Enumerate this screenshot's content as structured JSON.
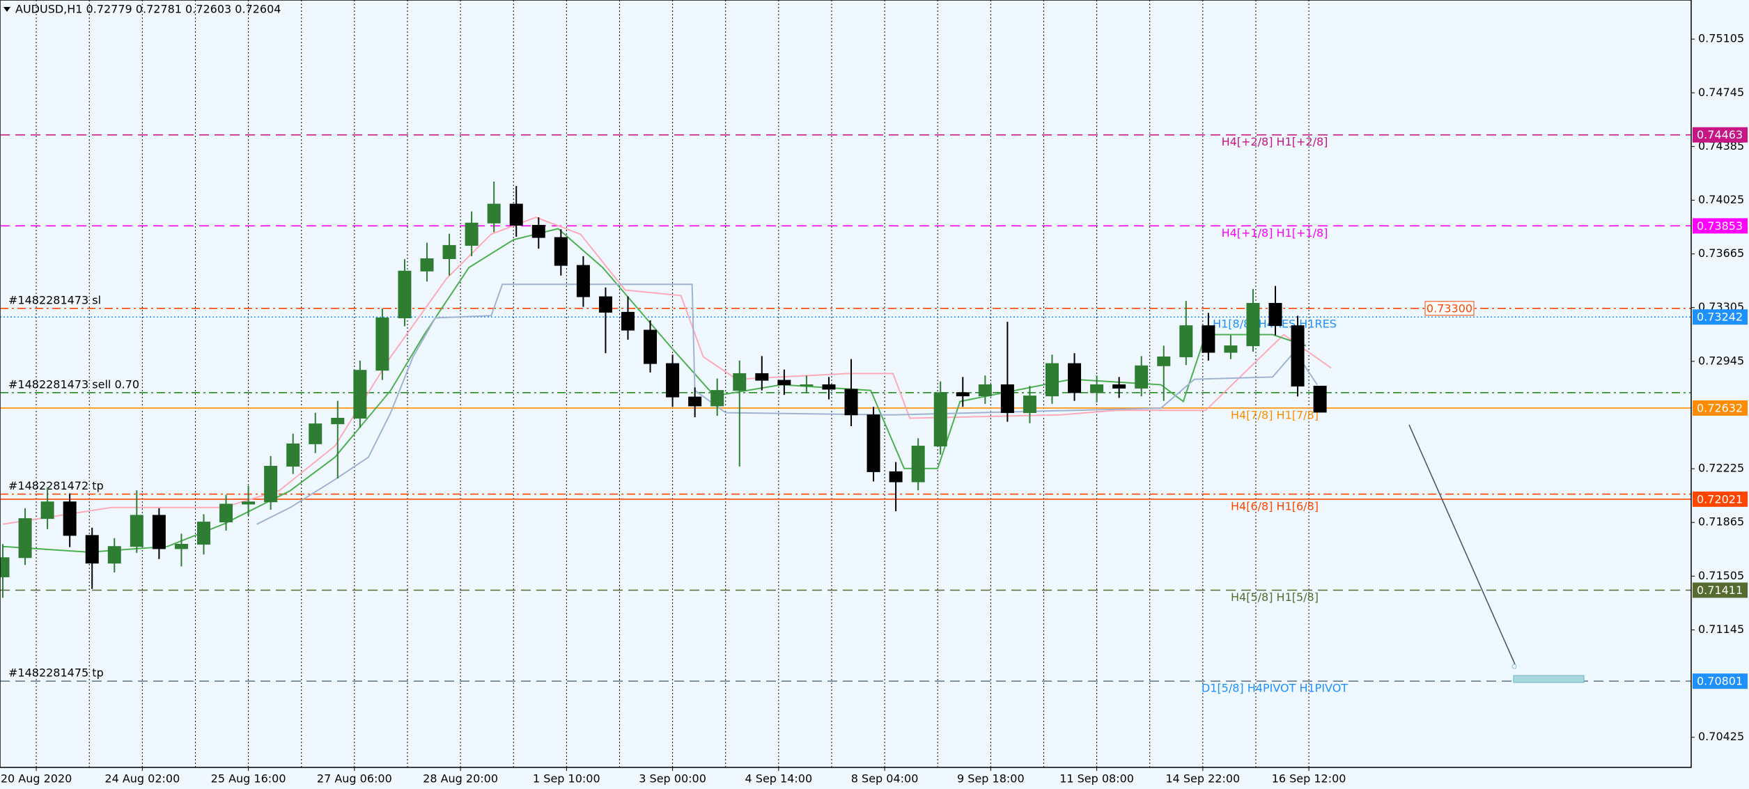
{
  "chart_data": {
    "type": "candlestick",
    "title": "AUDUSD,H1  0.72779 0.72781 0.72603 0.72604",
    "bull_color": "#2e7d32",
    "bear_color": "#000000",
    "background": "#f0f8ff",
    "xlim": [
      -13,
      593
    ],
    "ylim": [
      0.70223,
      0.75367
    ],
    "xticks": [
      {
        "value": 0,
        "label": "20 Aug 2020"
      },
      {
        "value": 38,
        "label": "24 Aug 02:00"
      },
      {
        "value": 76,
        "label": "25 Aug 16:00"
      },
      {
        "value": 114,
        "label": "27 Aug 06:00"
      },
      {
        "value": 152,
        "label": "28 Aug 20:00"
      },
      {
        "value": 190,
        "label": "1 Sep 10:00"
      },
      {
        "value": 228,
        "label": "3 Sep 00:00"
      },
      {
        "value": 266,
        "label": "4 Sep 14:00"
      },
      {
        "value": 304,
        "label": "8 Sep 04:00"
      },
      {
        "value": 342,
        "label": "9 Sep 18:00"
      },
      {
        "value": 380,
        "label": "11 Sep 08:00"
      },
      {
        "value": 418,
        "label": "14 Sep 22:00"
      },
      {
        "value": 456,
        "label": "16 Sep 12:00"
      }
    ],
    "yticks": [
      0.75105,
      0.74745,
      0.74385,
      0.74025,
      0.73665,
      0.73305,
      0.72945,
      0.72225,
      0.71865,
      0.71505,
      0.71145,
      0.70425
    ],
    "x": [
      -12,
      -4,
      4,
      12,
      20,
      28,
      36,
      44,
      52,
      60,
      68,
      76,
      84,
      92,
      100,
      108,
      116,
      124,
      132,
      140,
      148,
      156,
      164,
      172,
      180,
      188,
      196,
      204,
      212,
      220,
      228,
      236,
      244,
      252,
      260,
      268,
      276,
      284,
      292,
      300,
      308,
      316,
      324,
      332,
      340,
      348,
      356,
      364,
      372,
      380,
      388,
      396,
      404,
      412,
      420,
      428,
      436,
      444,
      452,
      460
    ],
    "open": [
      0.715,
      0.71629,
      0.71891,
      0.72003,
      0.71778,
      0.71592,
      0.71704,
      0.71913,
      0.71689,
      0.71719,
      0.71868,
      0.71988,
      0.72003,
      0.72242,
      0.72392,
      0.72526,
      0.72564,
      0.72885,
      0.73236,
      0.7355,
      0.73633,
      0.73722,
      0.73872,
      0.73999,
      0.73857,
      0.73775,
      0.73588,
      0.73378,
      0.73274,
      0.73154,
      0.7293,
      0.72706,
      0.72646,
      0.7275,
      0.72863,
      0.72818,
      0.72788,
      0.72788,
      0.72758,
      0.72586,
      0.72205,
      0.72137,
      0.72377,
      0.72735,
      0.72713,
      0.72788,
      0.72601,
      0.72713,
      0.7293,
      0.72735,
      0.72788,
      0.72765,
      0.72915,
      0.72975,
      0.73184,
      0.73005,
      0.73049,
      0.73334,
      0.73184,
      0.72779
    ],
    "high": [
      0.7172,
      0.7196,
      0.721,
      0.7206,
      0.7183,
      0.7176,
      0.7208,
      0.7196,
      0.7179,
      0.7192,
      0.7205,
      0.7211,
      0.7231,
      0.7246,
      0.726,
      0.7268,
      0.7295,
      0.733,
      0.7363,
      0.7374,
      0.738,
      0.7395,
      0.7415,
      0.7412,
      0.7391,
      0.7383,
      0.7365,
      0.7344,
      0.7338,
      0.7322,
      0.7299,
      0.7277,
      0.7283,
      0.7295,
      0.7298,
      0.7289,
      0.7285,
      0.7284,
      0.7296,
      0.7264,
      0.7227,
      0.7243,
      0.7281,
      0.7284,
      0.7285,
      0.7321,
      0.7278,
      0.7299,
      0.73,
      0.7285,
      0.7284,
      0.7298,
      0.7305,
      0.7335,
      0.7327,
      0.7312,
      0.7343,
      0.7345,
      0.7325,
      0.72781
    ],
    "low": [
      0.7136,
      0.7158,
      0.7182,
      0.717,
      0.7142,
      0.7153,
      0.7166,
      0.7162,
      0.7157,
      0.7165,
      0.7181,
      0.7191,
      0.7195,
      0.7219,
      0.7233,
      0.7216,
      0.725,
      0.7282,
      0.7318,
      0.7348,
      0.7352,
      0.7365,
      0.7381,
      0.7378,
      0.737,
      0.7352,
      0.7331,
      0.73,
      0.7309,
      0.7287,
      0.7264,
      0.7257,
      0.7258,
      0.7224,
      0.7275,
      0.7272,
      0.7273,
      0.7269,
      0.7251,
      0.7214,
      0.7194,
      0.7208,
      0.7232,
      0.7264,
      0.7266,
      0.7254,
      0.7253,
      0.7266,
      0.7268,
      0.7267,
      0.727,
      0.7271,
      0.7268,
      0.7292,
      0.7295,
      0.7296,
      0.7301,
      0.7312,
      0.7271,
      0.72603
    ],
    "close": [
      0.71629,
      0.71891,
      0.72003,
      0.71778,
      0.71592,
      0.71704,
      0.71913,
      0.71689,
      0.71719,
      0.71868,
      0.71988,
      0.72003,
      0.72242,
      0.72392,
      0.72526,
      0.72564,
      0.72885,
      0.73236,
      0.7355,
      0.73633,
      0.73722,
      0.73872,
      0.73999,
      0.73857,
      0.73775,
      0.73588,
      0.73378,
      0.73274,
      0.73154,
      0.7293,
      0.72706,
      0.72646,
      0.7275,
      0.72863,
      0.72818,
      0.72788,
      0.72788,
      0.72758,
      0.72586,
      0.72205,
      0.72137,
      0.72377,
      0.72735,
      0.72713,
      0.72788,
      0.72601,
      0.72713,
      0.7293,
      0.72735,
      0.72788,
      0.72765,
      0.72915,
      0.72975,
      0.73184,
      0.73005,
      0.73049,
      0.73334,
      0.73184,
      0.72779,
      0.72604
    ],
    "indicators": [
      {
        "color": "#ffaab8",
        "x": [
          -12,
          27,
          67,
          87,
          107,
          127,
          147,
          163,
          179,
          195,
          211,
          231,
          239,
          251,
          291,
          307,
          313,
          367,
          387,
          419,
          447,
          464
        ],
        "values": [
          0.71853,
          0.71965,
          0.71965,
          0.72078,
          0.72377,
          0.72975,
          0.735,
          0.73797,
          0.7391,
          0.73797,
          0.73423,
          0.73386,
          0.72975,
          0.72825,
          0.72863,
          0.72863,
          0.72564,
          0.72586,
          0.72616,
          0.72616,
          0.73124,
          0.729
        ]
      },
      {
        "color": "#4caf50",
        "x": [
          -12,
          19,
          47,
          67,
          91,
          107,
          127,
          139,
          155,
          171,
          187,
          203,
          227,
          243,
          267,
          299,
          311,
          323,
          331,
          371,
          403,
          411,
          419,
          443,
          455
        ],
        "values": [
          0.71704,
          0.71666,
          0.71704,
          0.71853,
          0.72078,
          0.72302,
          0.7275,
          0.73124,
          0.73573,
          0.7376,
          0.73834,
          0.73573,
          0.73049,
          0.72713,
          0.72788,
          0.7275,
          0.72227,
          0.72227,
          0.72676,
          0.72825,
          0.72788,
          0.72676,
          0.73124,
          0.73124,
          0.73049
        ]
      },
      {
        "color": "#9fb3d1",
        "x": [
          79,
          91,
          107,
          119,
          127,
          135,
          143,
          163,
          167,
          235,
          236,
          247,
          307,
          403,
          415,
          443,
          451,
          459
        ],
        "values": [
          0.71853,
          0.71965,
          0.72152,
          0.72302,
          0.72601,
          0.72975,
          0.73236,
          0.73251,
          0.73461,
          0.73461,
          0.7275,
          0.72601,
          0.72586,
          0.72631,
          0.72825,
          0.7284,
          0.73012,
          0.72788
        ]
      }
    ],
    "levels": [
      {
        "value": 0.74463,
        "axis_label": true,
        "text": "H4[+2/8] H1[+2/8]",
        "color": "#c71585",
        "style": "dashed"
      },
      {
        "value": 0.73853,
        "axis_label": true,
        "text": "H4[+1/8] H1[+1/8]",
        "color": "#ff00ff",
        "style": "dashed"
      },
      {
        "value": 0.733,
        "flag": "0.73300",
        "text": "#1482281473 sl",
        "side": "left",
        "color": "#ff4500",
        "style": "dashdot"
      },
      {
        "value": 0.73242,
        "axis_label": true,
        "text": "H1[8/8] H4RES H1RES",
        "color": "#1e90ff",
        "style": "dotted"
      },
      {
        "value": 0.72735,
        "text": "#1482281473 sell 0.70",
        "side": "left",
        "color": "#228b22",
        "style": "dashdot"
      },
      {
        "value": 0.72632,
        "axis_label": true,
        "text": "H4[7/8] H1[7/8]",
        "color": "#ff8c00",
        "style": "solid"
      },
      {
        "value": 0.72055,
        "text": "#1482281472 tp",
        "side": "left",
        "color": "#ff4500",
        "style": "dashdot"
      },
      {
        "value": 0.72021,
        "axis_label": true,
        "text": "H4[6/8] H1[6/8]",
        "color": "#ff4500",
        "style": "solid"
      },
      {
        "value": 0.71411,
        "axis_label": true,
        "text": "H4[5/8] H1[5/8]",
        "color": "#556b2f",
        "style": "dashed"
      },
      {
        "value": 0.70801,
        "axis_label": true,
        "text": "D1[5/8] H4PIVOT H1PIVOT",
        "color": "#1e90ff",
        "style": "dashed"
      },
      {
        "value": 0.70801,
        "text": "#1482281475 tp",
        "side": "left",
        "color": "#708090",
        "style": "dashed"
      }
    ]
  }
}
